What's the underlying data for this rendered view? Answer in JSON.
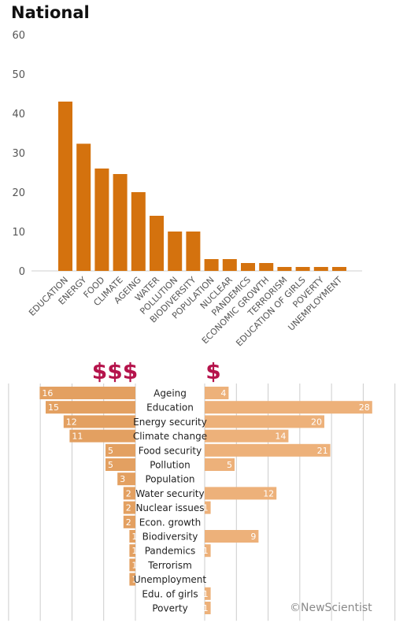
{
  "title": "National",
  "credit": "©NewScientist",
  "colors": {
    "bar": "#d4720e",
    "left_bar": "#e3a061",
    "right_bar": "#edb17a",
    "currency": "#b5134b",
    "grid": "#cccccc",
    "axis_text": "#555555"
  },
  "chart_data": [
    {
      "type": "bar",
      "title": "National",
      "xlabel": "",
      "ylabel": "",
      "ylim": [
        0,
        60
      ],
      "yticks": [
        0,
        10,
        20,
        30,
        40,
        50,
        60
      ],
      "grid": false,
      "categories": [
        "EDUCATION",
        "ENERGY",
        "FOOD",
        "CLIMATE",
        "AGEING",
        "WATER",
        "POLLUTION",
        "BIODIVERSITY",
        "POPULATION",
        "NUCLEAR",
        "PANDEMICS",
        "ECONOMIC GROWTH",
        "TERRORISM",
        "EDUCATION OF GIRLS",
        "POVERTY",
        "UNEMPLOYMENT"
      ],
      "values": [
        43,
        32.3,
        26,
        24.6,
        20,
        14,
        10,
        10,
        3,
        3,
        2,
        2,
        1,
        1,
        1,
        1
      ]
    },
    {
      "type": "bar",
      "orientation": "horizontal-butterfly",
      "grid": true,
      "left_header": "$$$",
      "right_header": "$",
      "categories": [
        "Ageing",
        "Education",
        "Energy security",
        "Climate change",
        "Food security",
        "Pollution",
        "Population",
        "Water security",
        "Nuclear issues",
        "Econ. growth",
        "Biodiversity",
        "Pandemics",
        "Terrorism",
        "Unemployment",
        "Edu. of girls",
        "Poverty"
      ],
      "series": [
        {
          "side": "left",
          "values": [
            16,
            15,
            12,
            11,
            5,
            5,
            3,
            2,
            2,
            2,
            1,
            1,
            1,
            1,
            null,
            null
          ],
          "labels": [
            "16",
            "15",
            "12",
            "11",
            "5",
            "5",
            "3",
            "2",
            "2",
            "2",
            "1",
            "1",
            "1",
            "1",
            "",
            ""
          ]
        },
        {
          "side": "right",
          "values": [
            4,
            28,
            20,
            14,
            21,
            5,
            null,
            12,
            1,
            null,
            9,
            1,
            null,
            null,
            1,
            1
          ],
          "labels": [
            "4",
            "28",
            "20",
            "14",
            "21",
            "5",
            "",
            "12",
            "1",
            "",
            "9",
            "1",
            "",
            "",
            "1",
            "1"
          ]
        }
      ]
    }
  ]
}
